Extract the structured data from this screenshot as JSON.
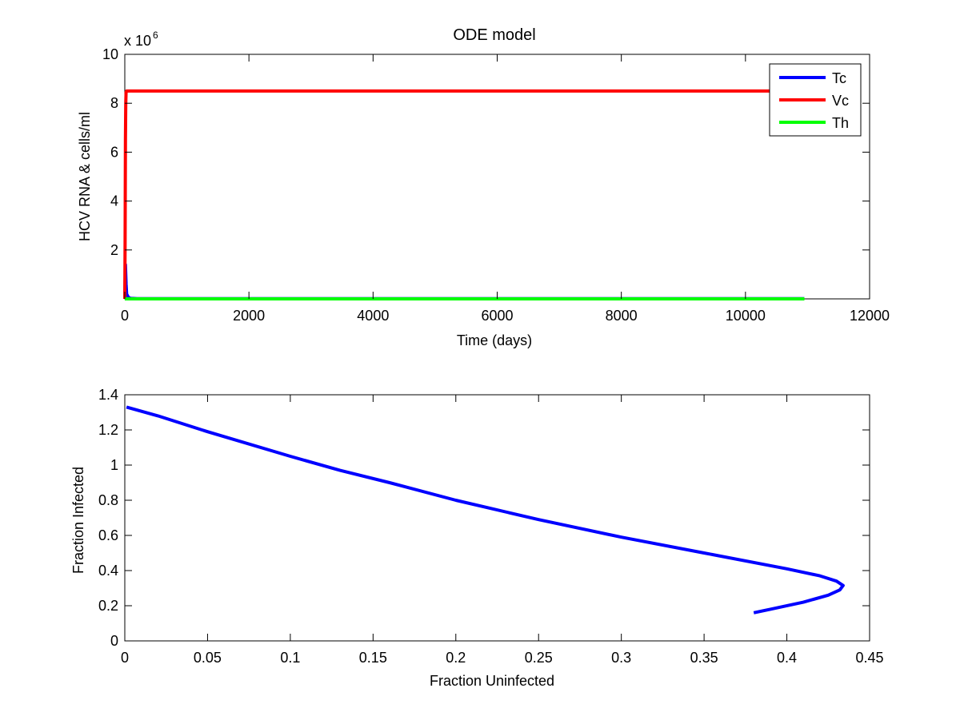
{
  "chart_data": [
    {
      "type": "line",
      "title": "ODE model",
      "xlabel": "Time (days)",
      "ylabel": "HCV RNA & cells/ml",
      "y_multiplier": {
        "base": "x 10",
        "exponent": "6"
      },
      "xlim": [
        0,
        12000
      ],
      "ylim": [
        0,
        10
      ],
      "xticks": [
        0,
        2000,
        4000,
        6000,
        8000,
        10000,
        12000
      ],
      "xtick_labels": [
        "0",
        "2000",
        "4000",
        "6000",
        "8000",
        "10000",
        "12000"
      ],
      "yticks": [
        2,
        4,
        6,
        8,
        10
      ],
      "ytick_labels": [
        "2",
        "4",
        "6",
        "8",
        "10"
      ],
      "grid": false,
      "legend_position": "top-right",
      "series": [
        {
          "name": "Tc",
          "color": "#0000ff",
          "x": [
            0,
            10,
            20,
            30,
            60,
            100,
            200,
            500,
            1000,
            5000,
            10950
          ],
          "y": [
            0,
            1.4,
            0.6,
            0.2,
            0.05,
            0.02,
            0.01,
            0.01,
            0.01,
            0.01,
            0.01
          ]
        },
        {
          "name": "Vc",
          "color": "#ff0000",
          "x": [
            0,
            5,
            10,
            15,
            20,
            30,
            50,
            100,
            1000,
            5000,
            10950
          ],
          "y": [
            0,
            2.5,
            6.5,
            8.0,
            8.45,
            8.5,
            8.5,
            8.5,
            8.5,
            8.5,
            8.5
          ]
        },
        {
          "name": "Th",
          "color": "#00ff00",
          "x": [
            0,
            100,
            1000,
            5000,
            10950
          ],
          "y": [
            0,
            0,
            0,
            0,
            0
          ]
        }
      ]
    },
    {
      "type": "line",
      "title": "",
      "xlabel": "Fraction Uninfected",
      "ylabel": "Fraction Infected",
      "xlim": [
        0,
        0.45
      ],
      "ylim": [
        0,
        1.4
      ],
      "xticks": [
        0,
        0.05,
        0.1,
        0.15,
        0.2,
        0.25,
        0.3,
        0.35,
        0.4,
        0.45
      ],
      "xtick_labels": [
        "0",
        "0.05",
        "0.1",
        "0.15",
        "0.2",
        "0.25",
        "0.3",
        "0.35",
        "0.4",
        "0.45"
      ],
      "yticks": [
        0,
        0.2,
        0.4,
        0.6,
        0.8,
        1,
        1.2,
        1.4
      ],
      "ytick_labels": [
        "0",
        "0.2",
        "0.4",
        "0.6",
        "0.8",
        "1",
        "1.2",
        "1.4"
      ],
      "grid": false,
      "series": [
        {
          "color": "#0000ff",
          "x": [
            0.001,
            0.02,
            0.05,
            0.1,
            0.13,
            0.16,
            0.2,
            0.25,
            0.3,
            0.35,
            0.4,
            0.42,
            0.43,
            0.434,
            0.432,
            0.425,
            0.41,
            0.39,
            0.38
          ],
          "y": [
            1.33,
            1.28,
            1.19,
            1.05,
            0.97,
            0.9,
            0.8,
            0.69,
            0.59,
            0.5,
            0.41,
            0.37,
            0.34,
            0.315,
            0.29,
            0.26,
            0.22,
            0.18,
            0.16
          ]
        }
      ]
    }
  ]
}
